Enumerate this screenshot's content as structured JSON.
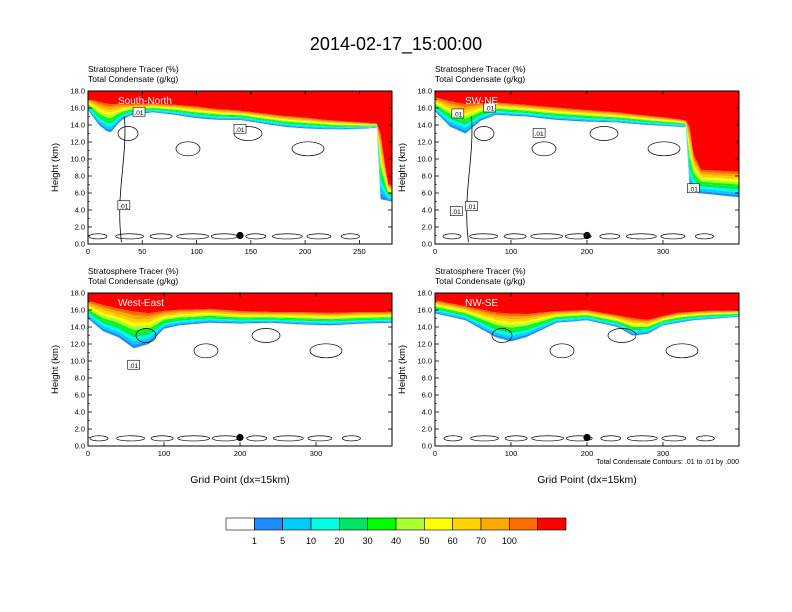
{
  "title": "2014-02-17_15:00:00",
  "chart_data": [
    {
      "type": "heatmap",
      "label_top": "Stratosphere Tracer   (%)",
      "label_bottom": "Total Condensate   (g/kg)",
      "inset": "South-North",
      "ylabel": "Height (km)",
      "xlabel": "",
      "xlim": [
        0,
        280
      ],
      "xticks": [
        0,
        50,
        100,
        150,
        200,
        250
      ],
      "ylim": [
        0,
        18
      ],
      "yticks": [
        "0.0",
        "2.0",
        "4.0",
        "6.0",
        "8.0",
        "10.0",
        "12.0",
        "14.0",
        "16.0",
        "18.0"
      ],
      "marker": {
        "x": 140,
        "y": 1.0
      },
      "contour_labels": [
        {
          "text": ".01",
          "x": 47,
          "y": 15.5
        },
        {
          "text": ".01",
          "x": 140,
          "y": 13.5
        },
        {
          "text": ".01",
          "x": 33,
          "y": 4.5
        }
      ],
      "tracer_top": [
        [
          0,
          17.2
        ],
        [
          20,
          16.8
        ],
        [
          40,
          16.6
        ],
        [
          60,
          16.6
        ],
        [
          80,
          16.5
        ],
        [
          100,
          16.3
        ],
        [
          120,
          16.0
        ],
        [
          140,
          15.8
        ],
        [
          160,
          15.5
        ],
        [
          180,
          15.2
        ],
        [
          200,
          15.0
        ],
        [
          220,
          14.7
        ],
        [
          240,
          14.5
        ],
        [
          260,
          14.3
        ],
        [
          268,
          14.2
        ],
        [
          272,
          13.0
        ],
        [
          274,
          7.5
        ],
        [
          280,
          7.0
        ]
      ],
      "tracer_bottom": [
        [
          0,
          15.8
        ],
        [
          10,
          14.0
        ],
        [
          20,
          13.0
        ],
        [
          30,
          14.5
        ],
        [
          40,
          15.2
        ],
        [
          60,
          15.5
        ],
        [
          80,
          15.2
        ],
        [
          100,
          14.8
        ],
        [
          120,
          14.6
        ],
        [
          140,
          14.6
        ],
        [
          160,
          14.2
        ],
        [
          180,
          13.8
        ],
        [
          200,
          13.6
        ],
        [
          220,
          13.5
        ],
        [
          240,
          13.5
        ],
        [
          260,
          13.6
        ],
        [
          266,
          13.7
        ],
        [
          266,
          8.5
        ],
        [
          260,
          5.5
        ],
        [
          280,
          5.0
        ]
      ]
    },
    {
      "type": "heatmap",
      "label_top": "Stratosphere Tracer   (%)",
      "label_bottom": "Total Condensate   (g/kg)",
      "inset": "SW-NE",
      "ylabel": "Height (km)",
      "xlabel": "",
      "xlim": [
        0,
        400
      ],
      "xticks": [
        0,
        100,
        200,
        300
      ],
      "ylim": [
        0,
        18
      ],
      "yticks": [
        "0.0",
        "2.0",
        "4.0",
        "6.0",
        "8.0",
        "10.0",
        "12.0",
        "14.0",
        "16.0",
        "18.0"
      ],
      "marker": {
        "x": 200,
        "y": 1.0
      },
      "contour_labels": [
        {
          "text": ".01",
          "x": 30,
          "y": 15.3
        },
        {
          "text": ".01",
          "x": 72,
          "y": 16.0
        },
        {
          "text": ".01",
          "x": 137,
          "y": 13.0
        },
        {
          "text": ".01",
          "x": 340,
          "y": 6.5
        },
        {
          "text": ".01",
          "x": 28,
          "y": 3.8
        },
        {
          "text": ".01",
          "x": 48,
          "y": 4.4
        }
      ],
      "tracer_top": [
        [
          0,
          17.4
        ],
        [
          40,
          16.8
        ],
        [
          80,
          16.8
        ],
        [
          120,
          16.5
        ],
        [
          160,
          16.2
        ],
        [
          200,
          15.9
        ],
        [
          240,
          15.6
        ],
        [
          280,
          15.2
        ],
        [
          320,
          14.8
        ],
        [
          335,
          14.5
        ],
        [
          340,
          11.0
        ],
        [
          350,
          9.0
        ],
        [
          400,
          8.8
        ]
      ],
      "tracer_bottom": [
        [
          0,
          15.6
        ],
        [
          20,
          13.8
        ],
        [
          40,
          13.0
        ],
        [
          60,
          14.5
        ],
        [
          80,
          15.2
        ],
        [
          120,
          15.0
        ],
        [
          160,
          14.6
        ],
        [
          200,
          14.4
        ],
        [
          240,
          14.3
        ],
        [
          280,
          14.0
        ],
        [
          320,
          13.8
        ],
        [
          332,
          13.8
        ],
        [
          332,
          7.0
        ],
        [
          345,
          6.0
        ],
        [
          400,
          5.5
        ]
      ]
    },
    {
      "type": "heatmap",
      "label_top": "Stratosphere Tracer   (%)",
      "label_bottom": "Total Condensate   (g/kg)",
      "inset": "West-East",
      "ylabel": "Height (km)",
      "xlabel": "Grid Point (dx=15km)",
      "xlim": [
        0,
        400
      ],
      "xticks": [
        0,
        100,
        200,
        300
      ],
      "ylim": [
        0,
        18
      ],
      "yticks": [
        "0.0",
        "2.0",
        "4.0",
        "6.0",
        "8.0",
        "10.0",
        "12.0",
        "14.0",
        "16.0",
        "18.0"
      ],
      "marker": {
        "x": 200,
        "y": 1.0
      },
      "contour_labels": [
        {
          "text": ".01",
          "x": 60,
          "y": 9.5
        }
      ],
      "tracer_top": [
        [
          0,
          17.3
        ],
        [
          40,
          16.5
        ],
        [
          80,
          16.0
        ],
        [
          120,
          16.2
        ],
        [
          160,
          16.3
        ],
        [
          200,
          16.0
        ],
        [
          240,
          15.9
        ],
        [
          280,
          15.9
        ],
        [
          320,
          15.8
        ],
        [
          360,
          15.9
        ],
        [
          400,
          15.9
        ]
      ],
      "tracer_bottom": [
        [
          0,
          15.0
        ],
        [
          20,
          13.5
        ],
        [
          40,
          12.8
        ],
        [
          60,
          11.5
        ],
        [
          80,
          12.0
        ],
        [
          100,
          13.8
        ],
        [
          120,
          14.2
        ],
        [
          160,
          14.5
        ],
        [
          200,
          14.4
        ],
        [
          240,
          14.5
        ],
        [
          280,
          14.3
        ],
        [
          320,
          14.2
        ],
        [
          360,
          14.4
        ],
        [
          400,
          14.5
        ]
      ]
    },
    {
      "type": "heatmap",
      "label_top": "Stratosphere Tracer   (%)",
      "label_bottom": "Total Condensate   (g/kg)",
      "inset": "NW-SE",
      "ylabel": "Height (km)",
      "xlabel": "Grid Point (dx=15km)",
      "xlim": [
        0,
        400
      ],
      "xticks": [
        0,
        100,
        200,
        300
      ],
      "ylim": [
        0,
        18
      ],
      "yticks": [
        "0.0",
        "2.0",
        "4.0",
        "6.0",
        "8.0",
        "10.0",
        "12.0",
        "14.0",
        "16.0",
        "18.0"
      ],
      "marker": {
        "x": 200,
        "y": 1.0
      },
      "contour_labels": [],
      "footnote": "Total Condensate Contours: .01 to .01 by .000",
      "tracer_top": [
        [
          0,
          17.3
        ],
        [
          40,
          16.6
        ],
        [
          80,
          16.0
        ],
        [
          120,
          15.8
        ],
        [
          160,
          16.0
        ],
        [
          200,
          16.1
        ],
        [
          240,
          15.5
        ],
        [
          280,
          15.0
        ],
        [
          320,
          15.8
        ],
        [
          360,
          16.0
        ],
        [
          400,
          16.0
        ]
      ],
      "tracer_bottom": [
        [
          0,
          15.6
        ],
        [
          40,
          14.8
        ],
        [
          80,
          12.8
        ],
        [
          100,
          12.3
        ],
        [
          120,
          12.8
        ],
        [
          160,
          14.5
        ],
        [
          200,
          14.8
        ],
        [
          240,
          14.0
        ],
        [
          260,
          13.0
        ],
        [
          280,
          13.2
        ],
        [
          300,
          14.2
        ],
        [
          340,
          14.8
        ],
        [
          400,
          15.2
        ]
      ]
    }
  ],
  "colorbar": {
    "labels": [
      "1",
      "5",
      "10",
      "20",
      "30",
      "40",
      "50",
      "60",
      "70",
      "100"
    ],
    "colors": [
      "#ffffff",
      "#1e8cff",
      "#00cdff",
      "#00ffe1",
      "#00e664",
      "#00ff00",
      "#aaff32",
      "#ffff00",
      "#ffd200",
      "#ffaa00",
      "#ff6e00",
      "#ff0000"
    ]
  }
}
